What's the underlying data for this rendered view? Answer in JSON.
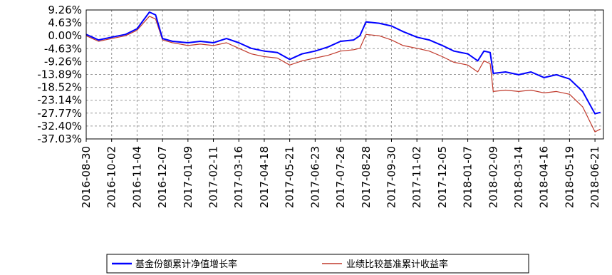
{
  "chart_data": {
    "type": "line",
    "title": "",
    "xlabel": "",
    "ylabel": "",
    "ylim": [
      -37.03,
      9.26
    ],
    "grid": true,
    "legend": "bottom",
    "y_ticks": [
      "9.26%",
      "4.63%",
      "0.00%",
      "-4.63%",
      "-9.26%",
      "-13.89%",
      "-18.52%",
      "-23.14%",
      "-27.77%",
      "-32.40%",
      "-37.03%"
    ],
    "y_tick_values": [
      9.26,
      4.63,
      0.0,
      -4.63,
      -9.26,
      -13.89,
      -18.52,
      -23.14,
      -27.77,
      -32.4,
      -37.03
    ],
    "x_ticks": [
      "2016-08-30",
      "2016-10-02",
      "2016-11-04",
      "2016-12-07",
      "2017-01-09",
      "2017-02-11",
      "2017-03-16",
      "2017-04-18",
      "2017-05-21",
      "2017-06-23",
      "2017-07-26",
      "2017-08-28",
      "2017-09-30",
      "2017-11-02",
      "2017-12-05",
      "2018-01-07",
      "2018-02-09",
      "2018-03-14",
      "2018-04-16",
      "2018-05-19",
      "2018-06-21"
    ],
    "series": [
      {
        "name": "基金份额累计净值增长率",
        "color": "#0000ff",
        "x": [
          "2016-08-30",
          "2016-09-15",
          "2016-10-02",
          "2016-10-20",
          "2016-11-04",
          "2016-11-20",
          "2016-11-28",
          "2016-12-07",
          "2016-12-20",
          "2017-01-09",
          "2017-01-25",
          "2017-02-11",
          "2017-02-28",
          "2017-03-16",
          "2017-04-01",
          "2017-04-18",
          "2017-05-05",
          "2017-05-21",
          "2017-06-06",
          "2017-06-23",
          "2017-07-10",
          "2017-07-26",
          "2017-08-12",
          "2017-08-20",
          "2017-08-28",
          "2017-09-14",
          "2017-09-30",
          "2017-10-15",
          "2017-11-02",
          "2017-11-18",
          "2017-12-05",
          "2017-12-20",
          "2018-01-07",
          "2018-01-20",
          "2018-01-28",
          "2018-02-05",
          "2018-02-09",
          "2018-02-25",
          "2018-03-14",
          "2018-03-30",
          "2018-04-16",
          "2018-05-02",
          "2018-05-19",
          "2018-06-05",
          "2018-06-21",
          "2018-06-28"
        ],
        "values": [
          0.5,
          -1.5,
          -0.5,
          0.5,
          2.5,
          8.5,
          7.5,
          -1.0,
          -2.0,
          -2.5,
          -2.0,
          -2.5,
          -1.0,
          -2.5,
          -4.5,
          -5.5,
          -6.0,
          -8.5,
          -6.5,
          -5.5,
          -4.0,
          -2.0,
          -1.5,
          0.0,
          5.0,
          4.5,
          3.5,
          1.5,
          -0.5,
          -1.5,
          -3.5,
          -5.5,
          -6.5,
          -9.0,
          -5.5,
          -6.0,
          -13.5,
          -13.0,
          -14.0,
          -13.0,
          -15.0,
          -14.0,
          -15.5,
          -20.0,
          -28.0,
          -27.5
        ]
      },
      {
        "name": "业绩比较基准累计收益率",
        "color": "#c0392b",
        "x": [
          "2016-08-30",
          "2016-09-15",
          "2016-10-02",
          "2016-10-20",
          "2016-11-04",
          "2016-11-20",
          "2016-11-28",
          "2016-12-07",
          "2016-12-20",
          "2017-01-09",
          "2017-01-25",
          "2017-02-11",
          "2017-02-28",
          "2017-03-16",
          "2017-04-01",
          "2017-04-18",
          "2017-05-05",
          "2017-05-21",
          "2017-06-06",
          "2017-06-23",
          "2017-07-10",
          "2017-07-26",
          "2017-08-12",
          "2017-08-20",
          "2017-08-28",
          "2017-09-14",
          "2017-09-30",
          "2017-10-15",
          "2017-11-02",
          "2017-11-18",
          "2017-12-05",
          "2017-12-20",
          "2018-01-07",
          "2018-01-20",
          "2018-01-28",
          "2018-02-05",
          "2018-02-09",
          "2018-02-25",
          "2018-03-14",
          "2018-03-30",
          "2018-04-16",
          "2018-05-02",
          "2018-05-19",
          "2018-06-05",
          "2018-06-21",
          "2018-06-28"
        ],
        "values": [
          0.0,
          -2.0,
          -1.0,
          0.0,
          2.0,
          7.0,
          6.0,
          -1.5,
          -2.5,
          -3.5,
          -3.0,
          -3.5,
          -2.5,
          -4.5,
          -6.5,
          -7.5,
          -8.0,
          -10.5,
          -9.0,
          -8.0,
          -7.0,
          -5.5,
          -5.0,
          -4.5,
          0.5,
          0.0,
          -1.5,
          -3.5,
          -4.5,
          -5.5,
          -7.5,
          -9.5,
          -10.5,
          -13.0,
          -9.0,
          -10.0,
          -20.0,
          -19.5,
          -20.0,
          -19.5,
          -20.5,
          -20.0,
          -21.0,
          -25.5,
          -34.5,
          -33.5
        ]
      }
    ]
  }
}
